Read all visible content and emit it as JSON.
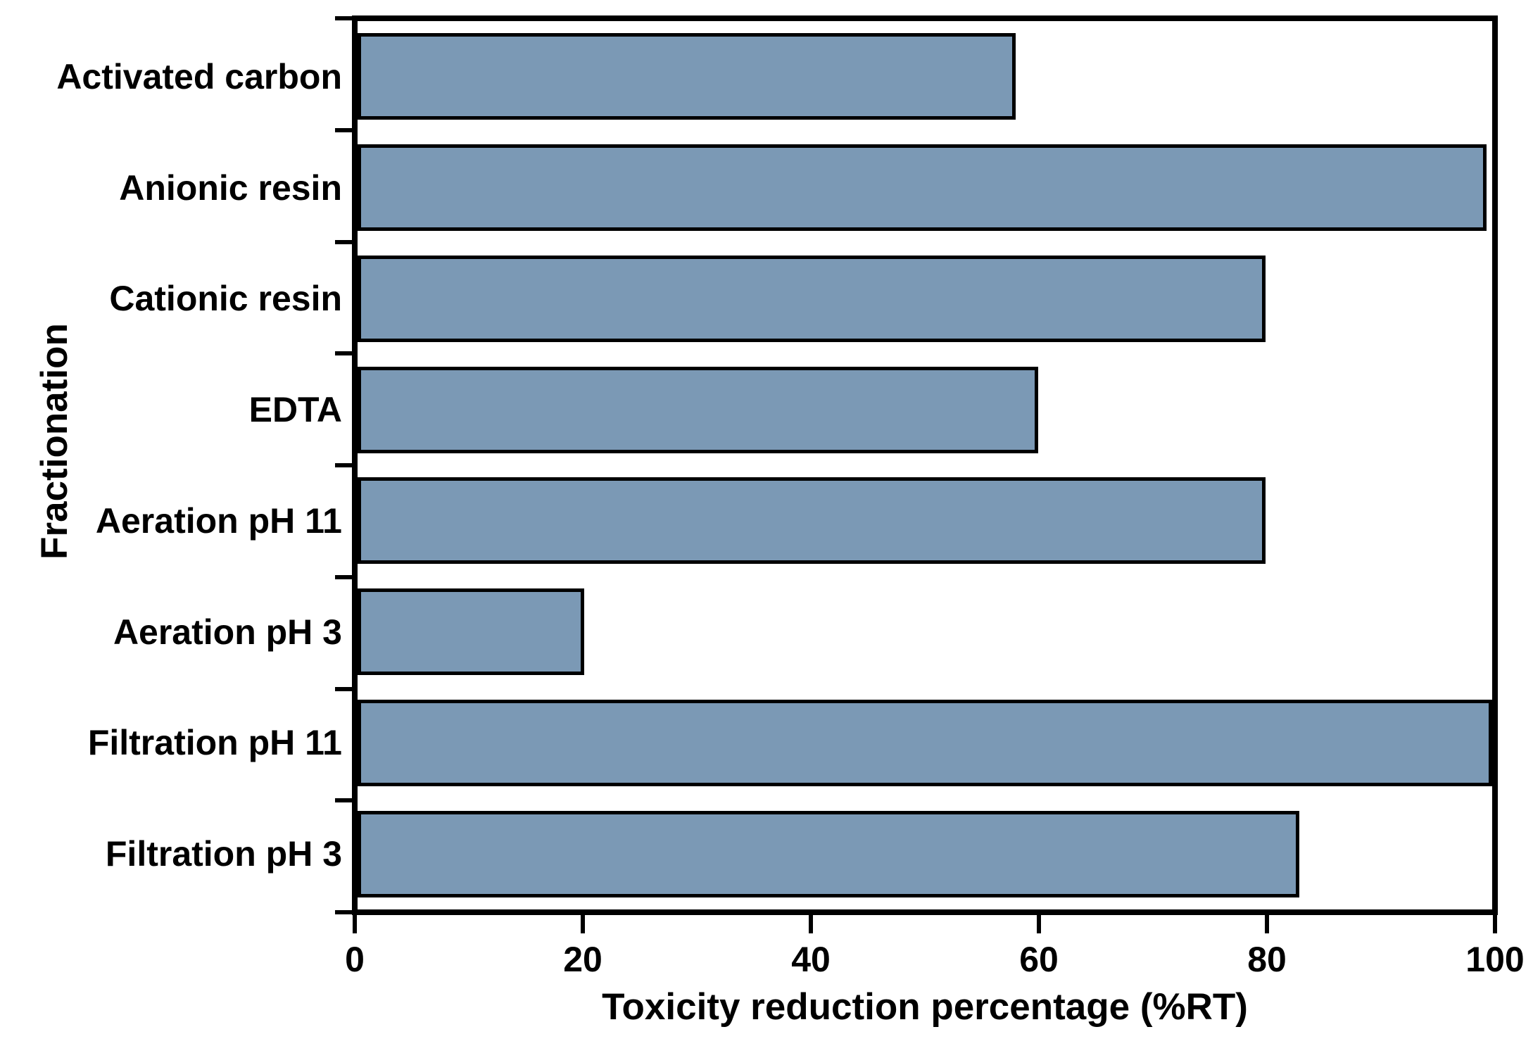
{
  "chart_data": {
    "type": "bar",
    "orientation": "horizontal",
    "xlabel": "Toxicity reduction percentage (%RT)",
    "ylabel": "Fractionation",
    "xlim": [
      0,
      100
    ],
    "xticks": [
      "0",
      "20",
      "40",
      "60",
      "80",
      "100"
    ],
    "xtick_values": [
      0,
      20,
      40,
      60,
      80,
      100
    ],
    "grid": false,
    "legend": "none",
    "bar_fill_color": "#7b99b5",
    "bar_border_color": "#000000",
    "frame_color": "#000000",
    "categories": [
      "Activated carbon",
      "Anionic resin",
      "Cationic resin",
      "EDTA",
      "Aeration pH 11",
      "Aeration pH 3",
      "Filtration pH 11",
      "Filtration pH 3"
    ],
    "values": [
      58,
      99.5,
      80,
      60,
      80,
      20,
      100,
      83
    ]
  }
}
